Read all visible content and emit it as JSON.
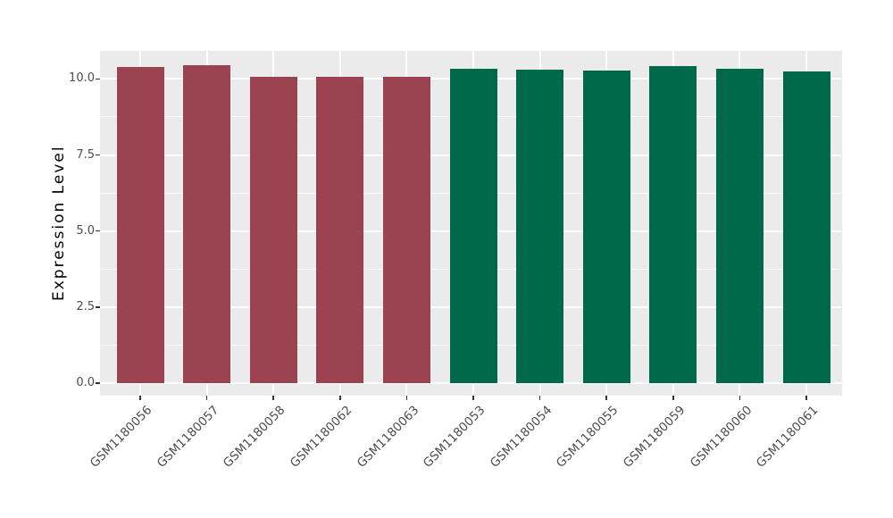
{
  "chart_data": {
    "type": "bar",
    "title": "",
    "ylabel": "Expression Level",
    "xlabel": "",
    "categories": [
      "GSM1180056",
      "GSM1180057",
      "GSM1180058",
      "GSM1180062",
      "GSM1180063",
      "GSM1180053",
      "GSM1180054",
      "GSM1180055",
      "GSM1180059",
      "GSM1180060",
      "GSM1180061"
    ],
    "values": [
      10.4,
      10.45,
      10.08,
      10.08,
      10.08,
      10.32,
      10.3,
      10.28,
      10.43,
      10.32,
      10.24
    ],
    "groups": [
      "group1",
      "group1",
      "group1",
      "group1",
      "group1",
      "group2",
      "group2",
      "group2",
      "group2",
      "group2",
      "group2"
    ],
    "group_colors": {
      "group1": "#9C4351",
      "group2": "#00694A"
    },
    "ylim": [
      0,
      10.92
    ],
    "yticks": [
      0.0,
      2.5,
      5.0,
      7.5,
      10.0
    ],
    "ytick_labels": [
      "0.0",
      "2.5",
      "5.0",
      "7.5",
      "10.0"
    ],
    "yminor": [
      1.25,
      3.75,
      6.25,
      8.75
    ],
    "x_tick_label_angle": -45,
    "grid": true,
    "legend": "none",
    "styles": {
      "panel_bg": "#EBEBEB",
      "grid_color": "#FFFFFF",
      "tick_color": "#333333",
      "tick_label_color": "#4D4D4D",
      "axis_title_color": "#000000",
      "figure_bg": "#FFFFFF"
    }
  }
}
